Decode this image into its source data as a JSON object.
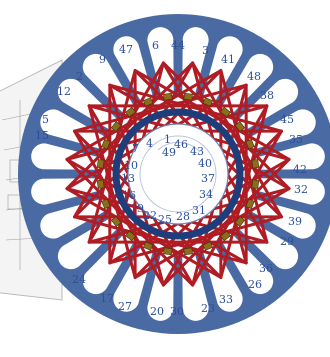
{
  "colors": {
    "stator": "#4a6aa3",
    "winding": "#b01c24",
    "inner_ring": "#1f3d7a",
    "coil_block": "#8a6e1c",
    "label": "#2b4f9a",
    "background_sheet": "#f2f2f2"
  },
  "slot_count": 48,
  "outer_labels": [
    {
      "id": "l47",
      "text": "47"
    },
    {
      "id": "l6",
      "text": "6"
    },
    {
      "id": "l44",
      "text": "44"
    },
    {
      "id": "l3",
      "text": "3"
    },
    {
      "id": "l9",
      "text": "9"
    },
    {
      "id": "l41",
      "text": "41"
    },
    {
      "id": "l2",
      "text": "2"
    },
    {
      "id": "l48",
      "text": "48"
    },
    {
      "id": "l12",
      "text": "12"
    },
    {
      "id": "l38",
      "text": "38"
    },
    {
      "id": "l5",
      "text": "5"
    },
    {
      "id": "l45",
      "text": "45"
    },
    {
      "id": "l15",
      "text": "15"
    },
    {
      "id": "l35",
      "text": "35"
    },
    {
      "id": "l42",
      "text": "42"
    },
    {
      "id": "l32",
      "text": "32"
    },
    {
      "id": "l39",
      "text": "39"
    },
    {
      "id": "l29",
      "text": "29"
    },
    {
      "id": "l24",
      "text": "24"
    },
    {
      "id": "l36",
      "text": "36"
    },
    {
      "id": "l26",
      "text": "26"
    },
    {
      "id": "l17",
      "text": "17"
    },
    {
      "id": "l33",
      "text": "33"
    },
    {
      "id": "l27",
      "text": "27"
    },
    {
      "id": "l20",
      "text": "20"
    },
    {
      "id": "l30",
      "text": "30"
    },
    {
      "id": "l23",
      "text": "23"
    }
  ],
  "inner_labels": [
    {
      "id": "i4",
      "text": "4"
    },
    {
      "id": "i1",
      "text": "1"
    },
    {
      "id": "i46",
      "text": "46"
    },
    {
      "id": "i49",
      "text": "49"
    },
    {
      "id": "i7",
      "text": "7"
    },
    {
      "id": "i43",
      "text": "43"
    },
    {
      "id": "i40",
      "text": "40"
    },
    {
      "id": "i10",
      "text": "10"
    },
    {
      "id": "i13",
      "text": "13"
    },
    {
      "id": "i37",
      "text": "37"
    },
    {
      "id": "i16",
      "text": "16"
    },
    {
      "id": "i34",
      "text": "34"
    },
    {
      "id": "i19",
      "text": "19"
    },
    {
      "id": "i31",
      "text": "31"
    },
    {
      "id": "i22",
      "text": "22"
    },
    {
      "id": "i25",
      "text": "25"
    },
    {
      "id": "i28",
      "text": "28"
    }
  ]
}
